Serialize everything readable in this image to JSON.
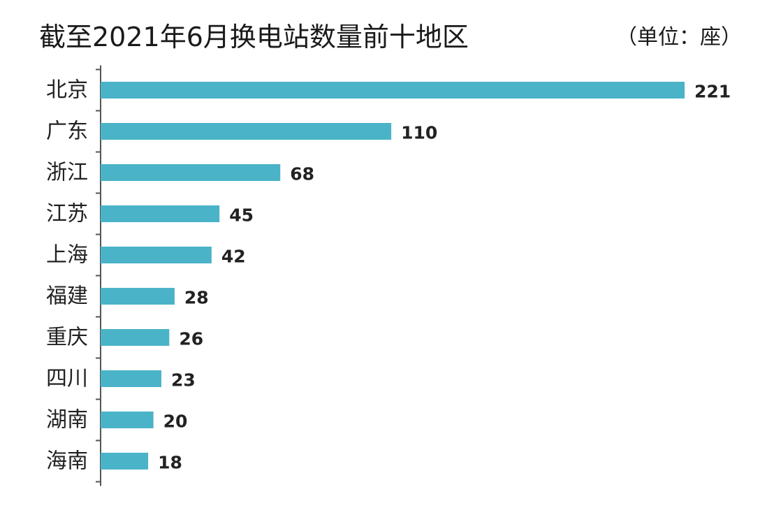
{
  "chart_data": {
    "type": "bar",
    "orientation": "horizontal",
    "title": "截至2021年6月换电站数量前十地区",
    "unit": "（单位：座）",
    "categories": [
      "北京",
      "广东",
      "浙江",
      "江苏",
      "上海",
      "福建",
      "重庆",
      "四川",
      "湖南",
      "海南"
    ],
    "values": [
      221,
      110,
      68,
      45,
      42,
      28,
      26,
      23,
      20,
      18
    ],
    "bar_color": "#4ab3c8",
    "grid": false,
    "legend": "none"
  }
}
